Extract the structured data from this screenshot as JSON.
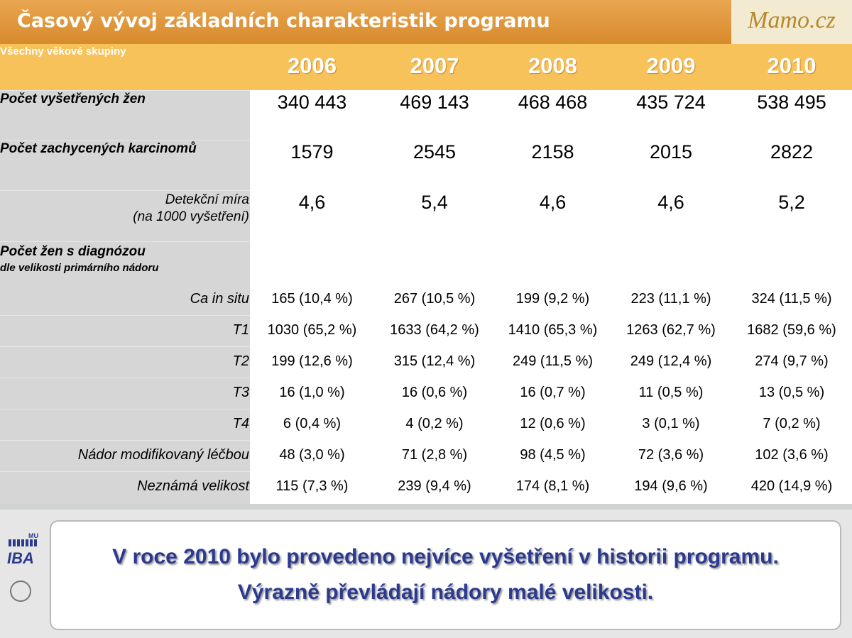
{
  "header": {
    "title": "Časový vývoj základních charakteristik programu",
    "logo": "Mamo.cz"
  },
  "table": {
    "corner": "Všechny věkové skupiny",
    "years": [
      "2006",
      "2007",
      "2008",
      "2009",
      "2010"
    ],
    "main_rows": [
      {
        "label": "Počet vyšetřených žen",
        "values": [
          "340 443",
          "469 143",
          "468 468",
          "435 724",
          "538 495"
        ]
      },
      {
        "label": "Počet zachycených karcinomů",
        "values": [
          "1579",
          "2545",
          "2158",
          "2015",
          "2822"
        ]
      }
    ],
    "rate_row": {
      "label": [
        "Detekční míra",
        "(na 1000 vyšetření)"
      ],
      "values": [
        "4,6",
        "5,4",
        "4,6",
        "4,6",
        "5,2"
      ]
    },
    "section": {
      "title": "Počet žen s diagnózou",
      "subtitle": "dle velikosti primárního nádoru"
    },
    "size_rows": [
      {
        "label": "Ca in situ",
        "values": [
          "165 (10,4 %)",
          "267 (10,5 %)",
          "199 (9,2 %)",
          "223 (11,1 %)",
          "324 (11,5 %)"
        ]
      },
      {
        "label": "T1",
        "values": [
          "1030 (65,2 %)",
          "1633 (64,2 %)",
          "1410 (65,3 %)",
          "1263 (62,7 %)",
          "1682 (59,6 %)"
        ]
      },
      {
        "label": "T2",
        "values": [
          "199 (12,6 %)",
          "315 (12,4 %)",
          "249 (11,5 %)",
          "249 (12,4 %)",
          "274 (9,7 %)"
        ]
      },
      {
        "label": "T3",
        "values": [
          "16 (1,0 %)",
          "16 (0,6 %)",
          "16 (0,7 %)",
          "11 (0,5 %)",
          "13 (0,5 %)"
        ]
      },
      {
        "label": "T4",
        "values": [
          "6 (0,4 %)",
          "4 (0,2 %)",
          "12 (0,6 %)",
          "3 (0,1 %)",
          "7 (0,2 %)"
        ]
      },
      {
        "label": "Nádor modifikovaný léčbou",
        "values": [
          "48 (3,0 %)",
          "71 (2,8 %)",
          "98 (4,5 %)",
          "72 (3,6 %)",
          "102 (3,6 %)"
        ]
      },
      {
        "label": "Neznámá velikost",
        "values": [
          "115 (7,3 %)",
          "239 (9,4 %)",
          "174 (8,1 %)",
          "194 (9,6 %)",
          "420 (14,9 %)"
        ]
      }
    ]
  },
  "footer": {
    "lines": [
      "V roce 2010 bylo provedeno nejvíce vyšetření v historii programu.",
      "Výrazně převládají nádory malé velikosti."
    ],
    "logo": {
      "mu": "MU",
      "iba": "IBA"
    }
  }
}
